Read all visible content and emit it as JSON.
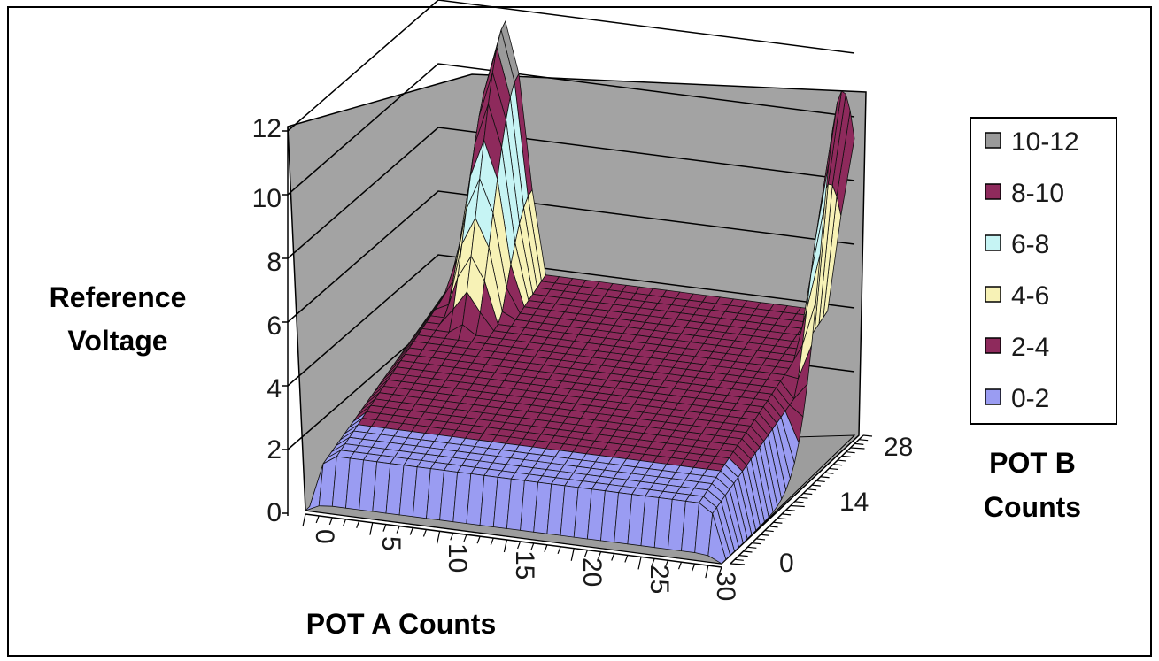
{
  "chart_data": {
    "type": "surface",
    "title": "",
    "zlabel": "Reference Voltage",
    "xlabel": "POT A Counts",
    "ylabel": "POT B Counts",
    "x_ticks": [
      "0",
      "5",
      "10",
      "15",
      "20",
      "25",
      "30"
    ],
    "y_ticks": [
      "0",
      "14",
      "28"
    ],
    "z_ticks": [
      "0",
      "2",
      "4",
      "6",
      "8",
      "10",
      "12"
    ],
    "zlim": [
      0,
      12
    ],
    "xlim": [
      0,
      31
    ],
    "ylim": [
      0,
      31
    ],
    "legend_position": "right",
    "legend": [
      {
        "label": "10-12",
        "color": "#9a9a9a"
      },
      {
        "label": "8-10",
        "color": "#8e2a5c"
      },
      {
        "label": "6-8",
        "color": "#c6f4f4"
      },
      {
        "label": "4-6",
        "color": "#f7f2b6"
      },
      {
        "label": "2-4",
        "color": "#8e2a5c"
      },
      {
        "label": "0-2",
        "color": "#9a9cf2"
      }
    ],
    "surface_profile": {
      "description_note": "",
      "peak_a": {
        "x": 5,
        "y": 31,
        "z": 11.6
      },
      "peak_b": {
        "x": 31,
        "y": 28,
        "z": 11.2
      },
      "valley_front_z": 1.6,
      "valley_back_z": 3.8
    }
  }
}
